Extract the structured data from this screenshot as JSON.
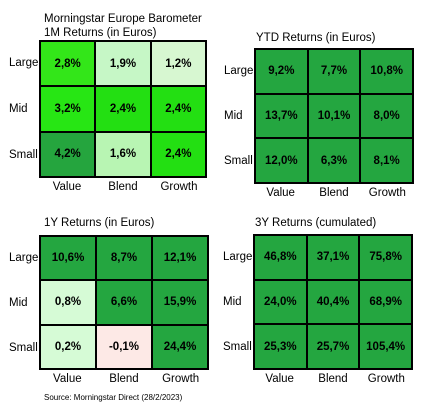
{
  "source_note": "Source: Morningstar Direct (28/2/2023)",
  "chart_data": [
    {
      "type": "heatmap",
      "supertitle": "Morningstar Europe Barometer",
      "title": "1M Returns (in Euros)",
      "rows": [
        "Large",
        "Mid",
        "Small"
      ],
      "columns": [
        "Value",
        "Blend",
        "Growth"
      ],
      "labels": [
        [
          "2,8%",
          "1,9%",
          "1,2%"
        ],
        [
          "3,2%",
          "2,4%",
          "2,4%"
        ],
        [
          "4,2%",
          "1,6%",
          "2,4%"
        ]
      ],
      "values": [
        [
          2.8,
          1.9,
          1.2
        ],
        [
          3.2,
          2.4,
          2.4
        ],
        [
          4.2,
          1.6,
          2.4
        ]
      ],
      "colors": [
        [
          "#33e619",
          "#c6f7c6",
          "#d7f7d1"
        ],
        [
          "#27e614",
          "#23df12",
          "#23df12"
        ],
        [
          "#25a53e",
          "#b8f5b3",
          "#23df12"
        ]
      ]
    },
    {
      "type": "heatmap",
      "title": "YTD Returns (in Euros)",
      "rows": [
        "Large",
        "Mid",
        "Small"
      ],
      "columns": [
        "Value",
        "Blend",
        "Growth"
      ],
      "labels": [
        [
          "9,2%",
          "7,7%",
          "10,8%"
        ],
        [
          "13,7%",
          "10,1%",
          "8,0%"
        ],
        [
          "12,0%",
          "6,3%",
          "8,1%"
        ]
      ],
      "values": [
        [
          9.2,
          7.7,
          10.8
        ],
        [
          13.7,
          10.1,
          8.0
        ],
        [
          12.0,
          6.3,
          8.1
        ]
      ],
      "colors": [
        [
          "#24a640",
          "#24a640",
          "#24a640"
        ],
        [
          "#24a640",
          "#24a640",
          "#24a640"
        ],
        [
          "#24a640",
          "#24a640",
          "#24a640"
        ]
      ]
    },
    {
      "type": "heatmap",
      "title": "1Y Returns (in Euros)",
      "rows": [
        "Large",
        "Mid",
        "Small"
      ],
      "columns": [
        "Value",
        "Blend",
        "Growth"
      ],
      "labels": [
        [
          "10,6%",
          "8,7%",
          "12,1%"
        ],
        [
          "0,8%",
          "6,6%",
          "15,9%"
        ],
        [
          "0,2%",
          "-0,1%",
          "24,4%"
        ]
      ],
      "values": [
        [
          10.6,
          8.7,
          12.1
        ],
        [
          0.8,
          6.6,
          15.9
        ],
        [
          0.2,
          -0.1,
          24.4
        ]
      ],
      "colors": [
        [
          "#24a640",
          "#24a640",
          "#24a640"
        ],
        [
          "#d6fbd6",
          "#24a640",
          "#24a640"
        ],
        [
          "#d6fbd6",
          "#fde9e6",
          "#24a640"
        ]
      ]
    },
    {
      "type": "heatmap",
      "title": "3Y Returns (cumulated)",
      "rows": [
        "Large",
        "Mid",
        "Small"
      ],
      "columns": [
        "Value",
        "Blend",
        "Growth"
      ],
      "labels": [
        [
          "46,8%",
          "37,1%",
          "75,8%"
        ],
        [
          "24,0%",
          "40,4%",
          "68,9%"
        ],
        [
          "25,3%",
          "25,7%",
          "105,4%"
        ]
      ],
      "values": [
        [
          46.8,
          37.1,
          75.8
        ],
        [
          24.0,
          40.4,
          68.9
        ],
        [
          25.3,
          25.7,
          105.4
        ]
      ],
      "colors": [
        [
          "#24a640",
          "#24a640",
          "#24a640"
        ],
        [
          "#24a640",
          "#24a640",
          "#24a640"
        ],
        [
          "#24a640",
          "#24a640",
          "#24a640"
        ]
      ]
    }
  ]
}
